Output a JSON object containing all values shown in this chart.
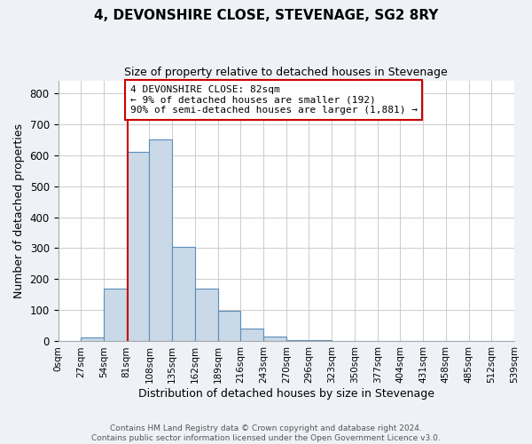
{
  "title": "4, DEVONSHIRE CLOSE, STEVENAGE, SG2 8RY",
  "subtitle": "Size of property relative to detached houses in Stevenage",
  "xlabel": "Distribution of detached houses by size in Stevenage",
  "ylabel": "Number of detached properties",
  "bar_edges": [
    0,
    27,
    54,
    81,
    108,
    135,
    162,
    189,
    216,
    243,
    270,
    297,
    324,
    351,
    378,
    405,
    432,
    459,
    486,
    513,
    540
  ],
  "bar_heights": [
    0,
    12,
    170,
    610,
    650,
    305,
    170,
    98,
    42,
    15,
    5,
    3,
    1,
    0,
    1,
    0,
    0,
    0,
    0,
    0
  ],
  "bar_color": "#c9d9e8",
  "bar_edge_color": "#5b8db8",
  "property_line_x": 82,
  "property_line_color": "#cc0000",
  "annotation_text": "4 DEVONSHIRE CLOSE: 82sqm\n← 9% of detached houses are smaller (192)\n90% of semi-detached houses are larger (1,881) →",
  "annotation_box_color": "#ffffff",
  "annotation_box_edge_color": "#cc0000",
  "ylim": [
    0,
    840
  ],
  "yticks": [
    0,
    100,
    200,
    300,
    400,
    500,
    600,
    700,
    800
  ],
  "tick_labels": [
    "0sqm",
    "27sqm",
    "54sqm",
    "81sqm",
    "108sqm",
    "135sqm",
    "162sqm",
    "189sqm",
    "216sqm",
    "243sqm",
    "270sqm",
    "296sqm",
    "323sqm",
    "350sqm",
    "377sqm",
    "404sqm",
    "431sqm",
    "458sqm",
    "485sqm",
    "512sqm",
    "539sqm"
  ],
  "footer_text": "Contains HM Land Registry data © Crown copyright and database right 2024.\nContains public sector information licensed under the Open Government Licence v3.0.",
  "background_color": "#eef2f7",
  "plot_background_color": "#ffffff",
  "grid_color": "#cccccc",
  "xlim": [
    0,
    540
  ]
}
